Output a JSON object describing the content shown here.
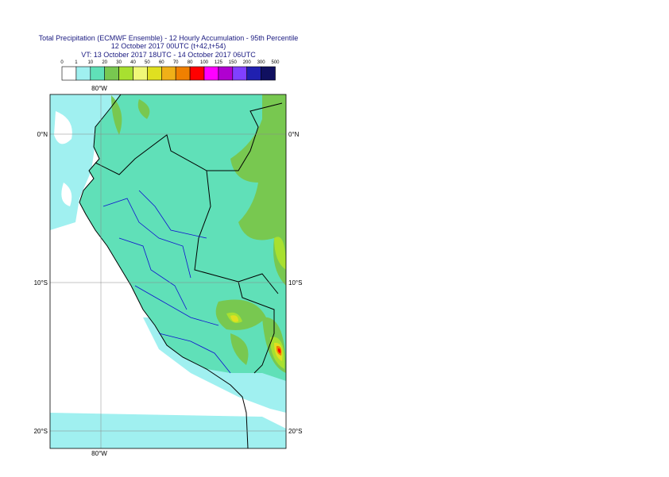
{
  "header": {
    "title": "Total Precipitation (ECMWF Ensemble) - 12 Hourly Accumulation - 95th Percentile",
    "subtitle": "12 October 2017 00UTC (t+42,t+54)",
    "valid_time": "VT: 13 October 2017 18UTC - 14 October 2017 06UTC"
  },
  "legend": {
    "labels": [
      0,
      1,
      10,
      20,
      30,
      40,
      50,
      60,
      70,
      80,
      100,
      125,
      150,
      200,
      300,
      500
    ],
    "colors": [
      "#ffffff",
      "#a0f0f0",
      "#60e0b8",
      "#78c850",
      "#a8e030",
      "#f0f878",
      "#e0e020",
      "#f0b018",
      "#f08000",
      "#ff0000",
      "#ff00ff",
      "#b000d0",
      "#8040ff",
      "#2020b0",
      "#101060"
    ]
  },
  "map": {
    "lon_label": "80°W",
    "lat_labels": [
      "0°N",
      "10°S",
      "20°S"
    ]
  }
}
